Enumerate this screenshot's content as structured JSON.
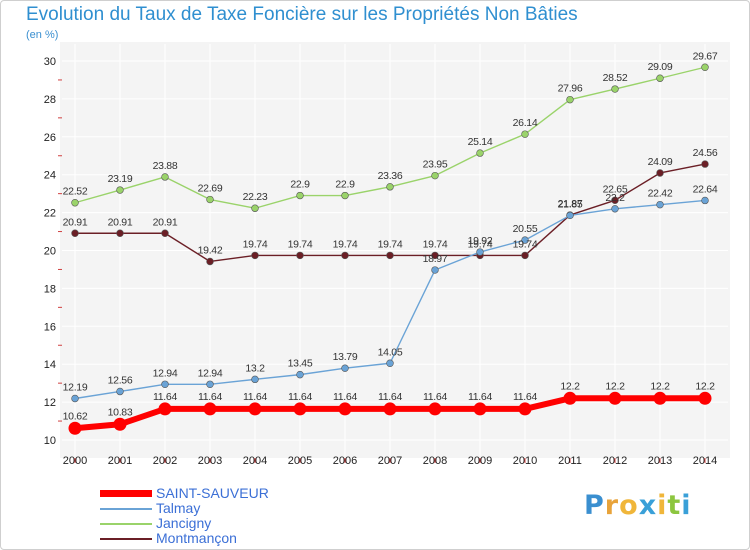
{
  "title": "Evolution du Taux de Taxe Foncière sur les Propriétés Non Bâties",
  "subtitle": "(en %)",
  "logo": {
    "text": "Proxiti",
    "letter_colors": [
      "#3a8fd0",
      "#e8a33a",
      "#f0b63a",
      "#3aa0d8",
      "#f0b63a",
      "#8cc63f",
      "#3aa0d8"
    ]
  },
  "chart_data": {
    "type": "line",
    "x": [
      "2000",
      "2001",
      "2002",
      "2003",
      "2004",
      "2005",
      "2006",
      "2007",
      "2008",
      "2009",
      "2010",
      "2011",
      "2012",
      "2013",
      "2014"
    ],
    "ylim": [
      10,
      30
    ],
    "yticks": [
      "10",
      "12",
      "14",
      "16",
      "18",
      "20",
      "22",
      "24",
      "26",
      "28",
      "30"
    ],
    "grid": true,
    "legend_position": "bottom-left",
    "series": [
      {
        "name": "SAINT-SAUVEUR",
        "color": "#ff0000",
        "labels": [
          "10.62",
          "10.83",
          "11.64",
          "11.64",
          "11.64",
          "11.64",
          "11.64",
          "11.64",
          "11.64",
          "11.64",
          "11.64",
          "12.2",
          "12.2",
          "12.2",
          "12.2"
        ],
        "values": [
          10.62,
          10.83,
          11.64,
          11.64,
          11.64,
          11.64,
          11.64,
          11.64,
          11.64,
          11.64,
          11.64,
          12.2,
          12.2,
          12.2,
          12.2
        ]
      },
      {
        "name": "Talmay",
        "color": "#6aa3d6",
        "labels": [
          "12.19",
          "12.56",
          "12.94",
          "12.94",
          "13.2",
          "13.45",
          "13.79",
          "14.05",
          "18.97",
          "19.92",
          "20.55",
          "21.85",
          "22.2",
          "22.42",
          "22.64"
        ],
        "values": [
          12.19,
          12.56,
          12.94,
          12.94,
          13.2,
          13.45,
          13.79,
          14.05,
          18.97,
          19.92,
          20.55,
          21.85,
          22.2,
          22.42,
          22.64
        ]
      },
      {
        "name": "Jancigny",
        "color": "#9ad36a",
        "labels": [
          "22.52",
          "23.19",
          "23.88",
          "22.69",
          "22.23",
          "22.9",
          "22.9",
          "23.36",
          "23.95",
          "25.14",
          "26.14",
          "27.96",
          "28.52",
          "29.09",
          "29.67"
        ],
        "values": [
          22.52,
          23.19,
          23.88,
          22.69,
          22.23,
          22.9,
          22.9,
          23.36,
          23.95,
          25.14,
          26.14,
          27.96,
          28.52,
          29.09,
          29.67
        ]
      },
      {
        "name": "Montmançon",
        "color": "#6b1f26",
        "labels": [
          "20.91",
          "20.91",
          "20.91",
          "19.42",
          "19.74",
          "19.74",
          "19.74",
          "19.74",
          "19.74",
          "19.74",
          "19.74",
          "21.87",
          "22.65",
          "24.09",
          "24.56"
        ],
        "values": [
          20.91,
          20.91,
          20.91,
          19.42,
          19.74,
          19.74,
          19.74,
          19.74,
          19.74,
          19.74,
          19.74,
          21.87,
          22.65,
          24.09,
          24.56
        ]
      }
    ]
  }
}
